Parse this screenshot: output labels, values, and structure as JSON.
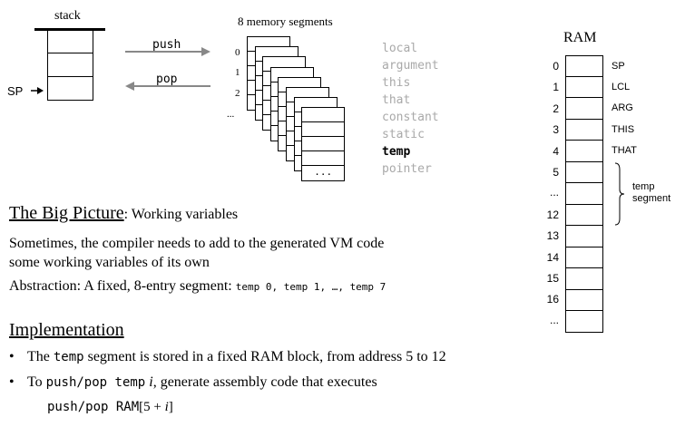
{
  "stack": {
    "label": "stack",
    "sp_label": "SP"
  },
  "arrows": {
    "push": "push",
    "pop": "pop"
  },
  "segments": {
    "title": "8 memory segments",
    "indices": [
      "0",
      "1",
      "2",
      "..."
    ],
    "ellipsis": "...",
    "names": [
      "local",
      "argument",
      "this",
      "that",
      "constant",
      "static",
      "temp",
      "pointer"
    ],
    "active": "temp"
  },
  "ram": {
    "title": "RAM",
    "addresses": [
      "0",
      "1",
      "2",
      "3",
      "4",
      "5",
      "...",
      "12",
      "13",
      "14",
      "15",
      "16",
      "..."
    ],
    "registers": [
      "SP",
      "LCL",
      "ARG",
      "THIS",
      "THAT"
    ],
    "temp_label_line1": "temp",
    "temp_label_line2": "segment"
  },
  "text": {
    "big_picture_title": "The Big Picture",
    "big_picture_rest": ": Working variables",
    "para1_line1": "Sometimes, the compiler needs to add to the generated VM code",
    "para1_line2": "some working variables of its own",
    "para2_prefix": "Abstraction: A fixed, 8-entry segment: ",
    "para2_code": "temp 0, temp 1, …, temp 7",
    "implementation_heading": "Implementation",
    "bullet_symbol": "•",
    "bullet1_pre": "The ",
    "bullet1_code": "temp",
    "bullet1_post": " segment is stored in a fixed RAM block, from address 5 to 12",
    "bullet2_pre": "To ",
    "bullet2_code": "push/pop temp",
    "bullet2_var": " i",
    "bullet2_post": ", generate assembly code that executes",
    "code_cmd": "push/pop RAM",
    "code_expr_pre": "[5 + ",
    "code_var": "i",
    "code_expr_post": "]"
  }
}
